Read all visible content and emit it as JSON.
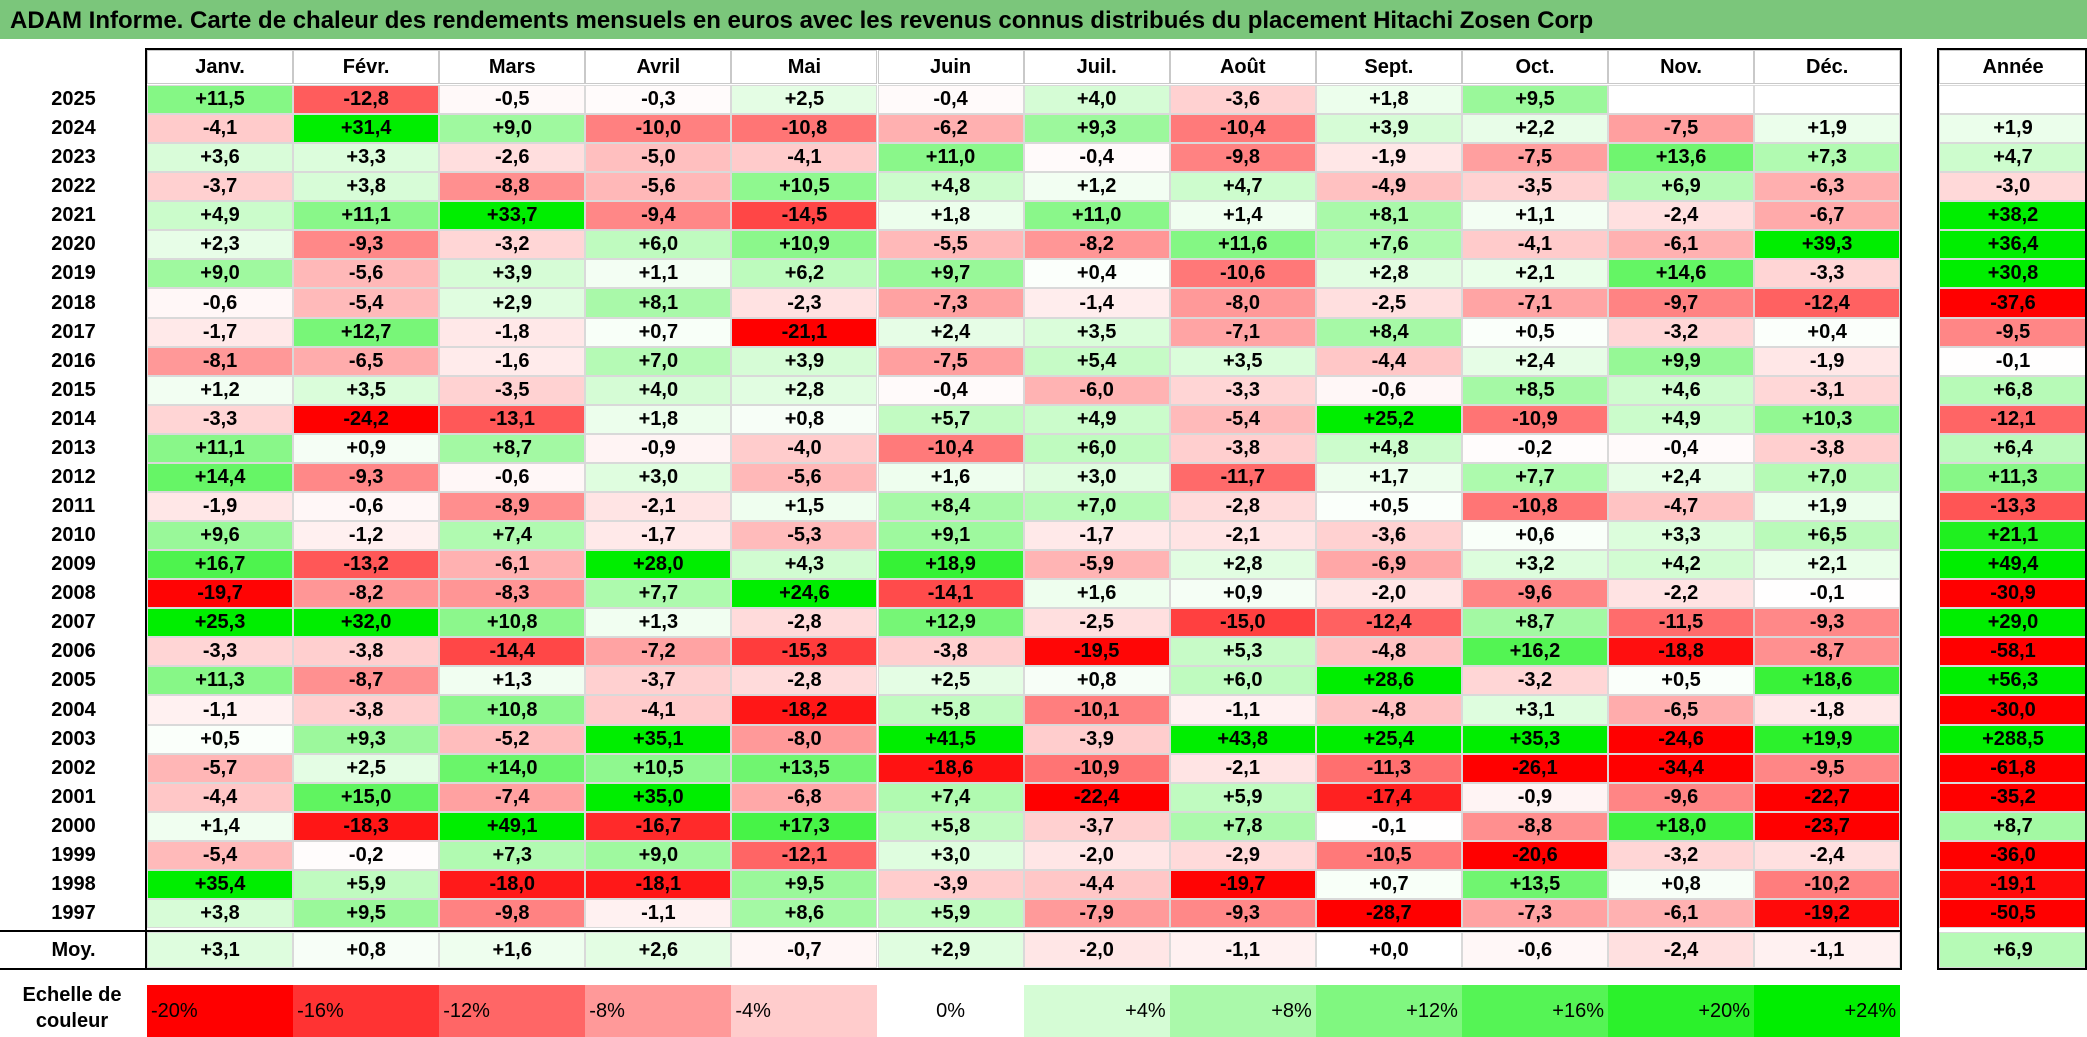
{
  "title": "ADAM Informe. Carte de chaleur des rendements mensuels en euros avec les revenus connus distribués du placement Hitachi Zosen Corp",
  "colors": {
    "title_bg": "#7bc67b",
    "negative": "#ff0000",
    "positive": "#00ee00",
    "neutral": "#ffffff"
  },
  "chart_data": {
    "type": "heatmap",
    "title": "ADAM Informe. Carte de chaleur des rendements mensuels en euros avec les revenus connus distribués du placement Hitachi Zosen Corp",
    "months": [
      "Janv.",
      "Févr.",
      "Mars",
      "Avril",
      "Mai",
      "Juin",
      "Juil.",
      "Août",
      "Sept.",
      "Oct.",
      "Nov.",
      "Déc."
    ],
    "annual_header": "Année",
    "rows": [
      {
        "year": "2025",
        "values": [
          "+11,5",
          "-12,8",
          "-0,5",
          "-0,3",
          "+2,5",
          "-0,4",
          "+4,0",
          "-3,6",
          "+1,8",
          "+9,5",
          "",
          ""
        ],
        "annual": ""
      },
      {
        "year": "2024",
        "values": [
          "-4,1",
          "+31,4",
          "+9,0",
          "-10,0",
          "-10,8",
          "-6,2",
          "+9,3",
          "-10,4",
          "+3,9",
          "+2,2",
          "-7,5",
          "+1,9"
        ],
        "annual": "+1,9"
      },
      {
        "year": "2023",
        "values": [
          "+3,6",
          "+3,3",
          "-2,6",
          "-5,0",
          "-4,1",
          "+11,0",
          "-0,4",
          "-9,8",
          "-1,9",
          "-7,5",
          "+13,6",
          "+7,3"
        ],
        "annual": "+4,7"
      },
      {
        "year": "2022",
        "values": [
          "-3,7",
          "+3,8",
          "-8,8",
          "-5,6",
          "+10,5",
          "+4,8",
          "+1,2",
          "+4,7",
          "-4,9",
          "-3,5",
          "+6,9",
          "-6,3"
        ],
        "annual": "-3,0"
      },
      {
        "year": "2021",
        "values": [
          "+4,9",
          "+11,1",
          "+33,7",
          "-9,4",
          "-14,5",
          "+1,8",
          "+11,0",
          "+1,4",
          "+8,1",
          "+1,1",
          "-2,4",
          "-6,7"
        ],
        "annual": "+38,2"
      },
      {
        "year": "2020",
        "values": [
          "+2,3",
          "-9,3",
          "-3,2",
          "+6,0",
          "+10,9",
          "-5,5",
          "-8,2",
          "+11,6",
          "+7,6",
          "-4,1",
          "-6,1",
          "+39,3"
        ],
        "annual": "+36,4"
      },
      {
        "year": "2019",
        "values": [
          "+9,0",
          "-5,6",
          "+3,9",
          "+1,1",
          "+6,2",
          "+9,7",
          "+0,4",
          "-10,6",
          "+2,8",
          "+2,1",
          "+14,6",
          "-3,3"
        ],
        "annual": "+30,8"
      },
      {
        "year": "2018",
        "values": [
          "-0,6",
          "-5,4",
          "+2,9",
          "+8,1",
          "-2,3",
          "-7,3",
          "-1,4",
          "-8,0",
          "-2,5",
          "-7,1",
          "-9,7",
          "-12,4"
        ],
        "annual": "-37,6"
      },
      {
        "year": "2017",
        "values": [
          "-1,7",
          "+12,7",
          "-1,8",
          "+0,7",
          "-21,1",
          "+2,4",
          "+3,5",
          "-7,1",
          "+8,4",
          "+0,5",
          "-3,2",
          "+0,4"
        ],
        "annual": "-9,5"
      },
      {
        "year": "2016",
        "values": [
          "-8,1",
          "-6,5",
          "-1,6",
          "+7,0",
          "+3,9",
          "-7,5",
          "+5,4",
          "+3,5",
          "-4,4",
          "+2,4",
          "+9,9",
          "-1,9"
        ],
        "annual": "-0,1"
      },
      {
        "year": "2015",
        "values": [
          "+1,2",
          "+3,5",
          "-3,5",
          "+4,0",
          "+2,8",
          "-0,4",
          "-6,0",
          "-3,3",
          "-0,6",
          "+8,5",
          "+4,6",
          "-3,1"
        ],
        "annual": "+6,8"
      },
      {
        "year": "2014",
        "values": [
          "-3,3",
          "-24,2",
          "-13,1",
          "+1,8",
          "+0,8",
          "+5,7",
          "+4,9",
          "-5,4",
          "+25,2",
          "-10,9",
          "+4,9",
          "+10,3"
        ],
        "annual": "-12,1"
      },
      {
        "year": "2013",
        "values": [
          "+11,1",
          "+0,9",
          "+8,7",
          "-0,9",
          "-4,0",
          "-10,4",
          "+6,0",
          "-3,8",
          "+4,8",
          "-0,2",
          "-0,4",
          "-3,8"
        ],
        "annual": "+6,4"
      },
      {
        "year": "2012",
        "values": [
          "+14,4",
          "-9,3",
          "-0,6",
          "+3,0",
          "-5,6",
          "+1,6",
          "+3,0",
          "-11,7",
          "+1,7",
          "+7,7",
          "+2,4",
          "+7,0"
        ],
        "annual": "+11,3"
      },
      {
        "year": "2011",
        "values": [
          "-1,9",
          "-0,6",
          "-8,9",
          "-2,1",
          "+1,5",
          "+8,4",
          "+7,0",
          "-2,8",
          "+0,5",
          "-10,8",
          "-4,7",
          "+1,9"
        ],
        "annual": "-13,3"
      },
      {
        "year": "2010",
        "values": [
          "+9,6",
          "-1,2",
          "+7,4",
          "-1,7",
          "-5,3",
          "+9,1",
          "-1,7",
          "-2,1",
          "-3,6",
          "+0,6",
          "+3,3",
          "+6,5"
        ],
        "annual": "+21,1"
      },
      {
        "year": "2009",
        "values": [
          "+16,7",
          "-13,2",
          "-6,1",
          "+28,0",
          "+4,3",
          "+18,9",
          "-5,9",
          "+2,8",
          "-6,9",
          "+3,2",
          "+4,2",
          "+2,1"
        ],
        "annual": "+49,4"
      },
      {
        "year": "2008",
        "values": [
          "-19,7",
          "-8,2",
          "-8,3",
          "+7,7",
          "+24,6",
          "-14,1",
          "+1,6",
          "+0,9",
          "-2,0",
          "-9,6",
          "-2,2",
          "-0,1"
        ],
        "annual": "-30,9"
      },
      {
        "year": "2007",
        "values": [
          "+25,3",
          "+32,0",
          "+10,8",
          "+1,3",
          "-2,8",
          "+12,9",
          "-2,5",
          "-15,0",
          "-12,4",
          "+8,7",
          "-11,5",
          "-9,3"
        ],
        "annual": "+29,0"
      },
      {
        "year": "2006",
        "values": [
          "-3,3",
          "-3,8",
          "-14,4",
          "-7,2",
          "-15,3",
          "-3,8",
          "-19,5",
          "+5,3",
          "-4,8",
          "+16,2",
          "-18,8",
          "-8,7"
        ],
        "annual": "-58,1"
      },
      {
        "year": "2005",
        "values": [
          "+11,3",
          "-8,7",
          "+1,3",
          "-3,7",
          "-2,8",
          "+2,5",
          "+0,8",
          "+6,0",
          "+28,6",
          "-3,2",
          "+0,5",
          "+18,6"
        ],
        "annual": "+56,3"
      },
      {
        "year": "2004",
        "values": [
          "-1,1",
          "-3,8",
          "+10,8",
          "-4,1",
          "-18,2",
          "+5,8",
          "-10,1",
          "-1,1",
          "-4,8",
          "+3,1",
          "-6,5",
          "-1,8"
        ],
        "annual": "-30,0"
      },
      {
        "year": "2003",
        "values": [
          "+0,5",
          "+9,3",
          "-5,2",
          "+35,1",
          "-8,0",
          "+41,5",
          "-3,9",
          "+43,8",
          "+25,4",
          "+35,3",
          "-24,6",
          "+19,9"
        ],
        "annual": "+288,5"
      },
      {
        "year": "2002",
        "values": [
          "-5,7",
          "+2,5",
          "+14,0",
          "+10,5",
          "+13,5",
          "-18,6",
          "-10,9",
          "-2,1",
          "-11,3",
          "-26,1",
          "-34,4",
          "-9,5"
        ],
        "annual": "-61,8"
      },
      {
        "year": "2001",
        "values": [
          "-4,4",
          "+15,0",
          "-7,4",
          "+35,0",
          "-6,8",
          "+7,4",
          "-22,4",
          "+5,9",
          "-17,4",
          "-0,9",
          "-9,6",
          "-22,7"
        ],
        "annual": "-35,2"
      },
      {
        "year": "2000",
        "values": [
          "+1,4",
          "-18,3",
          "+49,1",
          "-16,7",
          "+17,3",
          "+5,8",
          "-3,7",
          "+7,8",
          "-0,1",
          "-8,8",
          "+18,0",
          "-23,7"
        ],
        "annual": "+8,7"
      },
      {
        "year": "1999",
        "values": [
          "-5,4",
          "-0,2",
          "+7,3",
          "+9,0",
          "-12,1",
          "+3,0",
          "-2,0",
          "-2,9",
          "-10,5",
          "-20,6",
          "-3,2",
          "-2,4"
        ],
        "annual": "-36,0"
      },
      {
        "year": "1998",
        "values": [
          "+35,4",
          "+5,9",
          "-18,0",
          "-18,1",
          "+9,5",
          "-3,9",
          "-4,4",
          "-19,7",
          "+0,7",
          "+13,5",
          "+0,8",
          "-10,2"
        ],
        "annual": "-19,1"
      },
      {
        "year": "1997",
        "values": [
          "+3,8",
          "+9,5",
          "-9,8",
          "-1,1",
          "+8,6",
          "+5,9",
          "-7,9",
          "-9,3",
          "-28,7",
          "-7,3",
          "-6,1",
          "-19,2"
        ],
        "annual": "-50,5"
      }
    ],
    "average": {
      "label": "Moy.",
      "values": [
        "+3,1",
        "+0,8",
        "+1,6",
        "+2,6",
        "-0,7",
        "+2,9",
        "-2,0",
        "-1,1",
        "+0,0",
        "-0,6",
        "-2,4",
        "-1,1"
      ],
      "annual": "+6,9"
    },
    "scale": {
      "label": "Echelle de couleur",
      "steps": [
        "-20%",
        "-16%",
        "-12%",
        "-8%",
        "-4%",
        "0%",
        "+4%",
        "+8%",
        "+12%",
        "+16%",
        "+20%",
        "+24%"
      ]
    }
  }
}
